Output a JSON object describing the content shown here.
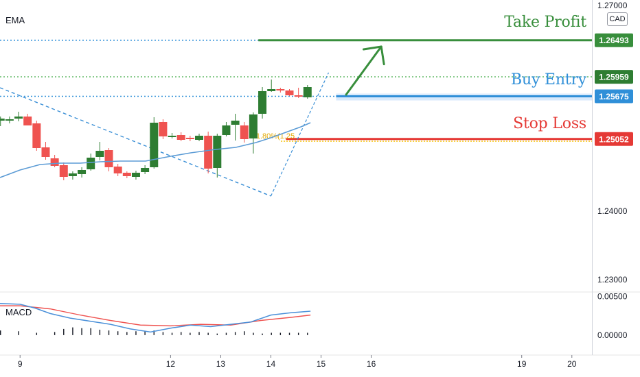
{
  "indicators": {
    "ema_label": "EMA",
    "macd_label": "MACD"
  },
  "currency_badge": "CAD",
  "annotations": {
    "take_profit": "Take Profit",
    "buy_entry": "Buy Entry",
    "stop_loss": "Stop Loss",
    "fib_label": "61.80%(1.25"
  },
  "colors": {
    "up": "#2e7d32",
    "down": "#ef5350",
    "ema": "#5b9bd5",
    "macd_line": "#4a90d9",
    "signal_line": "#ef5350",
    "take_profit": "#388e3c",
    "buy_entry": "#2f8fd8",
    "stop_loss": "#e53935",
    "fib": "#f5c000",
    "grid": "#e6e6e6"
  },
  "chart_data": {
    "type": "candlestick",
    "y_axis": {
      "range": [
        1.2283,
        1.2708
      ],
      "ticks": [
        {
          "value": 1.27,
          "label": "1.27000"
        },
        {
          "value": 1.24,
          "label": "1.24000"
        },
        {
          "value": 1.23,
          "label": "1.23000"
        }
      ]
    },
    "x_axis": {
      "range": [
        8.6,
        20.4
      ],
      "ticks": [
        {
          "value": 9,
          "label": "9"
        },
        {
          "value": 12,
          "label": "12"
        },
        {
          "value": 13,
          "label": "13"
        },
        {
          "value": 14,
          "label": "14"
        },
        {
          "value": 15,
          "label": "15"
        },
        {
          "value": 16,
          "label": "16"
        },
        {
          "value": 19,
          "label": "19"
        },
        {
          "value": 20,
          "label": "20"
        }
      ]
    },
    "candles": [
      {
        "x": 8.61,
        "o": 1.2532,
        "h": 1.2538,
        "l": 1.2524,
        "c": 1.2535
      },
      {
        "x": 8.79,
        "o": 1.2532,
        "h": 1.2538,
        "l": 1.2528,
        "c": 1.2534
      },
      {
        "x": 8.97,
        "o": 1.2535,
        "h": 1.2545,
        "l": 1.2531,
        "c": 1.2538
      },
      {
        "x": 9.15,
        "o": 1.2538,
        "h": 1.2542,
        "l": 1.2526,
        "c": 1.2525
      },
      {
        "x": 9.33,
        "o": 1.2528,
        "h": 1.2532,
        "l": 1.2488,
        "c": 1.2492
      },
      {
        "x": 9.51,
        "o": 1.2493,
        "h": 1.2501,
        "l": 1.2475,
        "c": 1.2479
      },
      {
        "x": 9.69,
        "o": 1.2477,
        "h": 1.2482,
        "l": 1.2464,
        "c": 1.2466
      },
      {
        "x": 9.87,
        "o": 1.2467,
        "h": 1.2471,
        "l": 1.2445,
        "c": 1.245
      },
      {
        "x": 10.05,
        "o": 1.2451,
        "h": 1.2458,
        "l": 1.2446,
        "c": 1.2455
      },
      {
        "x": 10.23,
        "o": 1.2454,
        "h": 1.2464,
        "l": 1.2449,
        "c": 1.246
      },
      {
        "x": 10.41,
        "o": 1.2461,
        "h": 1.2484,
        "l": 1.2459,
        "c": 1.2478
      },
      {
        "x": 10.59,
        "o": 1.2479,
        "h": 1.2501,
        "l": 1.2474,
        "c": 1.2488
      },
      {
        "x": 10.77,
        "o": 1.2489,
        "h": 1.2492,
        "l": 1.2458,
        "c": 1.2464
      },
      {
        "x": 10.95,
        "o": 1.2465,
        "h": 1.2469,
        "l": 1.2451,
        "c": 1.2455
      },
      {
        "x": 11.13,
        "o": 1.2456,
        "h": 1.2458,
        "l": 1.2448,
        "c": 1.2451
      },
      {
        "x": 11.31,
        "o": 1.245,
        "h": 1.2459,
        "l": 1.2446,
        "c": 1.2456
      },
      {
        "x": 11.49,
        "o": 1.2457,
        "h": 1.2467,
        "l": 1.2454,
        "c": 1.2463
      },
      {
        "x": 11.67,
        "o": 1.2464,
        "h": 1.2537,
        "l": 1.2462,
        "c": 1.2529
      },
      {
        "x": 11.85,
        "o": 1.253,
        "h": 1.2534,
        "l": 1.2505,
        "c": 1.2509
      },
      {
        "x": 12.03,
        "o": 1.2509,
        "h": 1.2514,
        "l": 1.2506,
        "c": 1.251
      },
      {
        "x": 12.21,
        "o": 1.2511,
        "h": 1.2515,
        "l": 1.2502,
        "c": 1.2504
      },
      {
        "x": 12.39,
        "o": 1.2507,
        "h": 1.251,
        "l": 1.2502,
        "c": 1.2505
      },
      {
        "x": 12.57,
        "o": 1.2504,
        "h": 1.2513,
        "l": 1.2502,
        "c": 1.251
      },
      {
        "x": 12.75,
        "o": 1.251,
        "h": 1.2516,
        "l": 1.2455,
        "c": 1.2462
      },
      {
        "x": 12.93,
        "o": 1.2463,
        "h": 1.2513,
        "l": 1.2449,
        "c": 1.251
      },
      {
        "x": 13.11,
        "o": 1.2511,
        "h": 1.253,
        "l": 1.2509,
        "c": 1.2525
      },
      {
        "x": 13.29,
        "o": 1.2526,
        "h": 1.2542,
        "l": 1.2503,
        "c": 1.2532
      },
      {
        "x": 13.47,
        "o": 1.2525,
        "h": 1.253,
        "l": 1.25,
        "c": 1.2505
      },
      {
        "x": 13.65,
        "o": 1.2506,
        "h": 1.2544,
        "l": 1.2484,
        "c": 1.2541
      },
      {
        "x": 13.83,
        "o": 1.2542,
        "h": 1.2581,
        "l": 1.2535,
        "c": 1.2575
      },
      {
        "x": 14.01,
        "o": 1.2575,
        "h": 1.2592,
        "l": 1.2574,
        "c": 1.2578
      },
      {
        "x": 14.19,
        "o": 1.2578,
        "h": 1.258,
        "l": 1.2573,
        "c": 1.2576
      },
      {
        "x": 14.37,
        "o": 1.2576,
        "h": 1.2578,
        "l": 1.2568,
        "c": 1.2569
      },
      {
        "x": 14.55,
        "o": 1.2569,
        "h": 1.258,
        "l": 1.2565,
        "c": 1.2567
      },
      {
        "x": 14.73,
        "o": 1.2566,
        "h": 1.2584,
        "l": 1.2564,
        "c": 1.2581
      }
    ],
    "ema": [
      {
        "x": 8.6,
        "y": 1.2449
      },
      {
        "x": 9.0,
        "y": 1.246
      },
      {
        "x": 9.4,
        "y": 1.2468
      },
      {
        "x": 9.8,
        "y": 1.247
      },
      {
        "x": 10.2,
        "y": 1.247
      },
      {
        "x": 10.6,
        "y": 1.2472
      },
      {
        "x": 11.0,
        "y": 1.2473
      },
      {
        "x": 11.5,
        "y": 1.2473
      },
      {
        "x": 12.0,
        "y": 1.248
      },
      {
        "x": 12.4,
        "y": 1.2485
      },
      {
        "x": 12.9,
        "y": 1.249
      },
      {
        "x": 13.3,
        "y": 1.2493
      },
      {
        "x": 13.7,
        "y": 1.25
      },
      {
        "x": 14.0,
        "y": 1.2507
      },
      {
        "x": 14.3,
        "y": 1.2515
      },
      {
        "x": 14.6,
        "y": 1.2523
      },
      {
        "x": 14.79,
        "y": 1.2529
      }
    ],
    "macd": [
      {
        "x": 8.6,
        "y": 0.0041
      },
      {
        "x": 9.0,
        "y": 0.004
      },
      {
        "x": 9.3,
        "y": 0.0035
      },
      {
        "x": 9.6,
        "y": 0.0028
      },
      {
        "x": 10.0,
        "y": 0.0022
      },
      {
        "x": 10.4,
        "y": 0.0018
      },
      {
        "x": 10.8,
        "y": 0.0014
      },
      {
        "x": 11.2,
        "y": 0.0008
      },
      {
        "x": 11.6,
        "y": 0.0004
      },
      {
        "x": 12.0,
        "y": 0.0009
      },
      {
        "x": 12.4,
        "y": 0.0013
      },
      {
        "x": 12.8,
        "y": 0.0011
      },
      {
        "x": 13.2,
        "y": 0.0014
      },
      {
        "x": 13.6,
        "y": 0.0017
      },
      {
        "x": 14.0,
        "y": 0.0026
      },
      {
        "x": 14.4,
        "y": 0.0029
      },
      {
        "x": 14.79,
        "y": 0.0031
      }
    ],
    "signal": [
      {
        "x": 8.6,
        "y": 0.0038
      },
      {
        "x": 9.0,
        "y": 0.0038
      },
      {
        "x": 9.6,
        "y": 0.0034
      },
      {
        "x": 10.2,
        "y": 0.0026
      },
      {
        "x": 10.8,
        "y": 0.0019
      },
      {
        "x": 11.4,
        "y": 0.0013
      },
      {
        "x": 12.0,
        "y": 0.0012
      },
      {
        "x": 12.6,
        "y": 0.0014
      },
      {
        "x": 13.2,
        "y": 0.0013
      },
      {
        "x": 13.8,
        "y": 0.0019
      },
      {
        "x": 14.4,
        "y": 0.0023
      },
      {
        "x": 14.79,
        "y": 0.0026
      }
    ],
    "macd_axis": {
      "range": [
        -0.0025,
        0.0055
      ],
      "ticks": [
        {
          "value": 0.005,
          "label": "0.00500"
        },
        {
          "value": 0.0,
          "label": "0.00000"
        }
      ]
    },
    "histogram": [
      {
        "x": 8.61,
        "v": 0.0006
      },
      {
        "x": 8.97,
        "v": 0.0005
      },
      {
        "x": 9.33,
        "v": 0.0003
      },
      {
        "x": 9.69,
        "v": 0.0004
      },
      {
        "x": 9.87,
        "v": 0.0008
      },
      {
        "x": 10.05,
        "v": 0.001
      },
      {
        "x": 10.23,
        "v": 0.0009
      },
      {
        "x": 10.41,
        "v": 0.0009
      },
      {
        "x": 10.59,
        "v": 0.0007
      },
      {
        "x": 10.77,
        "v": 0.0006
      },
      {
        "x": 10.95,
        "v": 0.0005
      },
      {
        "x": 11.13,
        "v": 0.0004
      },
      {
        "x": 11.31,
        "v": 0.0005
      },
      {
        "x": 11.49,
        "v": 0.0005
      },
      {
        "x": 11.67,
        "v": 0.0006
      },
      {
        "x": 11.85,
        "v": 0.0004
      },
      {
        "x": 12.03,
        "v": 0.0003
      },
      {
        "x": 12.21,
        "v": 0.0004
      },
      {
        "x": 12.39,
        "v": 0.0003
      },
      {
        "x": 12.57,
        "v": 0.0004
      },
      {
        "x": 12.75,
        "v": 0.0003
      },
      {
        "x": 12.93,
        "v": 0.0002
      },
      {
        "x": 13.11,
        "v": 0.0003
      },
      {
        "x": 13.29,
        "v": 0.0004
      },
      {
        "x": 13.47,
        "v": 0.0005
      },
      {
        "x": 13.65,
        "v": 0.0003
      },
      {
        "x": 13.83,
        "v": 0.0002
      },
      {
        "x": 14.01,
        "v": 0.0003
      },
      {
        "x": 14.19,
        "v": 0.0003
      },
      {
        "x": 14.37,
        "v": 0.0003
      },
      {
        "x": 14.55,
        "v": 0.0003
      },
      {
        "x": 14.73,
        "v": 0.0003
      }
    ],
    "price_levels": [
      {
        "name": "take-profit",
        "value": 1.26493,
        "label": "1.26493",
        "color": "#388e3c"
      },
      {
        "name": "high-level",
        "value": 1.25959,
        "label": "1.25959",
        "color": "#2e7d32"
      },
      {
        "name": "buy-entry",
        "value": 1.25675,
        "label": "1.25675",
        "color": "#2f8fd8"
      },
      {
        "name": "stop-loss",
        "value": 1.25052,
        "label": "1.25052",
        "color": "#e53935"
      }
    ],
    "dotted_lines": [
      {
        "value": 1.26493,
        "color": "#2f8fd8"
      },
      {
        "value": 1.25959,
        "color": "#66bb6a"
      },
      {
        "value": 1.25675,
        "color": "#2f8fd8"
      }
    ],
    "trendline": {
      "from": {
        "x": 8.6,
        "y": 1.258
      },
      "to": {
        "x": 14.0,
        "y": 1.2422
      }
    },
    "upswing_line": {
      "from": {
        "x": 14.0,
        "y": 1.2422
      },
      "to": {
        "x": 15.15,
        "y": 1.2602
      }
    },
    "fib_line": {
      "value": 1.2505
    },
    "take_profit_line": {
      "from_x": 13.75,
      "value": 1.26493
    },
    "buy_entry_line": {
      "from_x": 15.3,
      "value": 1.25675
    },
    "stop_loss_line": {
      "from_x": 14.3,
      "value": 1.25052
    },
    "arrow": {
      "from": {
        "x": 15.5,
        "y": 1.257
      },
      "to": {
        "x": 16.2,
        "y": 1.264
      }
    }
  }
}
